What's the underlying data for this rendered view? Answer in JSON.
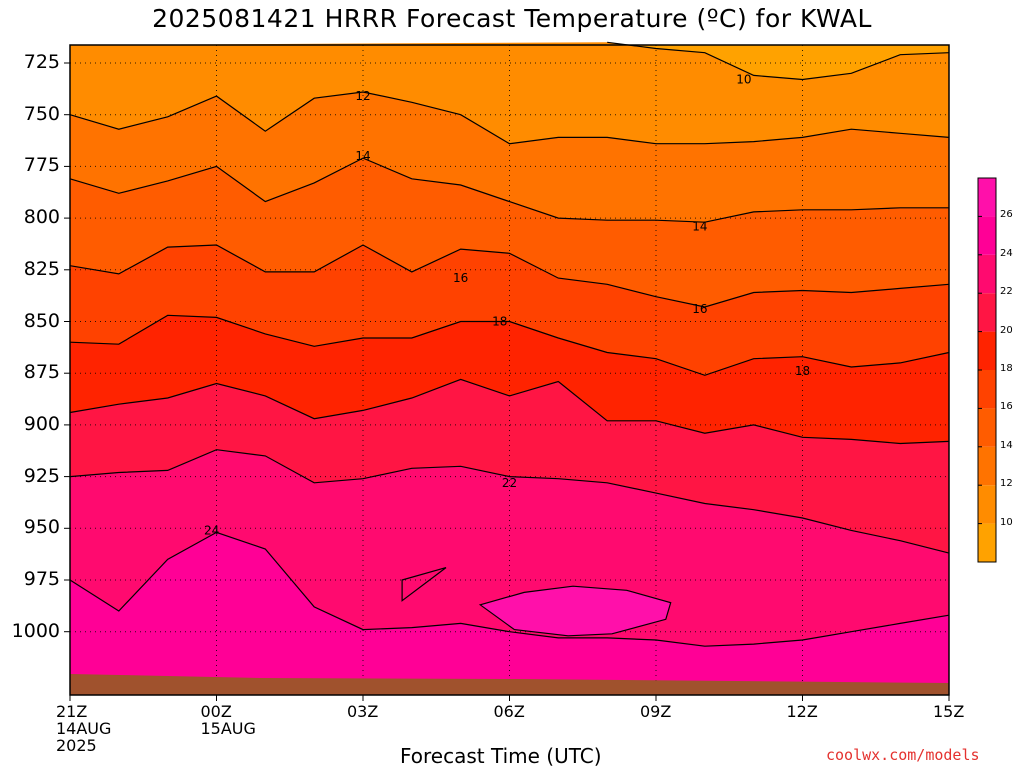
{
  "title": "2025081421 HRRR Forecast Temperature (ºC) for KWAL",
  "x_axis_title": "Forecast Time (UTC)",
  "credit": "coolwx.com/models",
  "chart_data": {
    "type": "contour",
    "title": "2025081421 HRRR Forecast Temperature (ºC) for KWAL",
    "xlabel": "Forecast Time (UTC)",
    "ylabel": "",
    "x_ticks": [
      {
        "lines": [
          "21Z",
          "14AUG",
          "2025"
        ]
      },
      {
        "lines": [
          "00Z",
          "15AUG"
        ]
      },
      {
        "lines": [
          "03Z"
        ]
      },
      {
        "lines": [
          "06Z"
        ]
      },
      {
        "lines": [
          "09Z"
        ]
      },
      {
        "lines": [
          "12Z"
        ]
      },
      {
        "lines": [
          "15Z"
        ]
      }
    ],
    "y_ticks": [
      "725",
      "750",
      "775",
      "800",
      "825",
      "850",
      "875",
      "900",
      "925",
      "950",
      "975",
      "1000"
    ],
    "y_axis_inverted": true,
    "grid": true,
    "contour_interval": 2,
    "contour_labels": [
      "10",
      "12",
      "14",
      "14",
      "16",
      "16",
      "18",
      "18",
      "22",
      "24"
    ],
    "colorbar_labels": [
      "10",
      "12",
      "14",
      "16",
      "18",
      "20",
      "22",
      "24",
      "26"
    ],
    "colorbar_colors": [
      "#ffa200",
      "#ff8c00",
      "#ff7300",
      "#ff5c00",
      "#ff4200",
      "#ff2300",
      "#ff1544",
      "#ff0a6f",
      "#ff0096",
      "#ff10aa"
    ],
    "contours_hours_x": [
      0,
      1,
      2,
      3,
      4,
      5,
      6,
      7,
      8,
      9,
      10,
      11,
      12,
      13,
      14,
      15,
      16,
      17,
      18
    ],
    "contours_pressure_hPa": {
      "10": [
        null,
        null,
        null,
        null,
        null,
        null,
        null,
        null,
        null,
        null,
        null,
        715,
        718,
        720,
        731,
        733,
        730,
        721,
        720
      ],
      "12": [
        750,
        757,
        751,
        741,
        758,
        742,
        739,
        744,
        750,
        764,
        761,
        761,
        764,
        764,
        763,
        761,
        757,
        759,
        761
      ],
      "14": [
        781,
        788,
        782,
        775,
        792,
        783,
        771,
        781,
        784,
        792,
        800,
        801,
        801,
        802,
        797,
        796,
        796,
        795,
        795
      ],
      "16": [
        823,
        827,
        814,
        813,
        826,
        826,
        813,
        826,
        815,
        817,
        829,
        832,
        838,
        843,
        836,
        835,
        836,
        834,
        832
      ],
      "18": [
        860,
        861,
        847,
        848,
        856,
        862,
        858,
        858,
        850,
        850,
        858,
        865,
        868,
        876,
        868,
        867,
        872,
        870,
        865
      ],
      "20": [
        894,
        890,
        887,
        880,
        886,
        897,
        893,
        887,
        878,
        886,
        879,
        898,
        898,
        904,
        900,
        906,
        907,
        909,
        908
      ],
      "22": [
        925,
        923,
        922,
        912,
        915,
        928,
        926,
        921,
        920,
        925,
        926,
        928,
        933,
        938,
        941,
        945,
        951,
        956,
        962
      ],
      "24": [
        975,
        990,
        965,
        952,
        960,
        988,
        999,
        998,
        996,
        1000,
        1003,
        1003,
        1004,
        1007,
        1006,
        1004,
        1000,
        996,
        992
      ]
    },
    "closed_24C_region_hours_x": [
      8.4,
      9.3,
      10.3,
      11.4,
      12.3,
      12.2,
      11.1,
      10.2,
      9.1,
      8.4
    ],
    "closed_24C_region_pressure_hPa": [
      987,
      981,
      978,
      980,
      986,
      994,
      1001,
      1002,
      999,
      987
    ],
    "small_cell_hours_x": [
      6.8,
      7.7,
      6.8,
      6.8
    ],
    "small_cell_pressure_hPa": [
      975,
      969,
      985,
      975
    ],
    "terrain_color": "#a0522d"
  }
}
